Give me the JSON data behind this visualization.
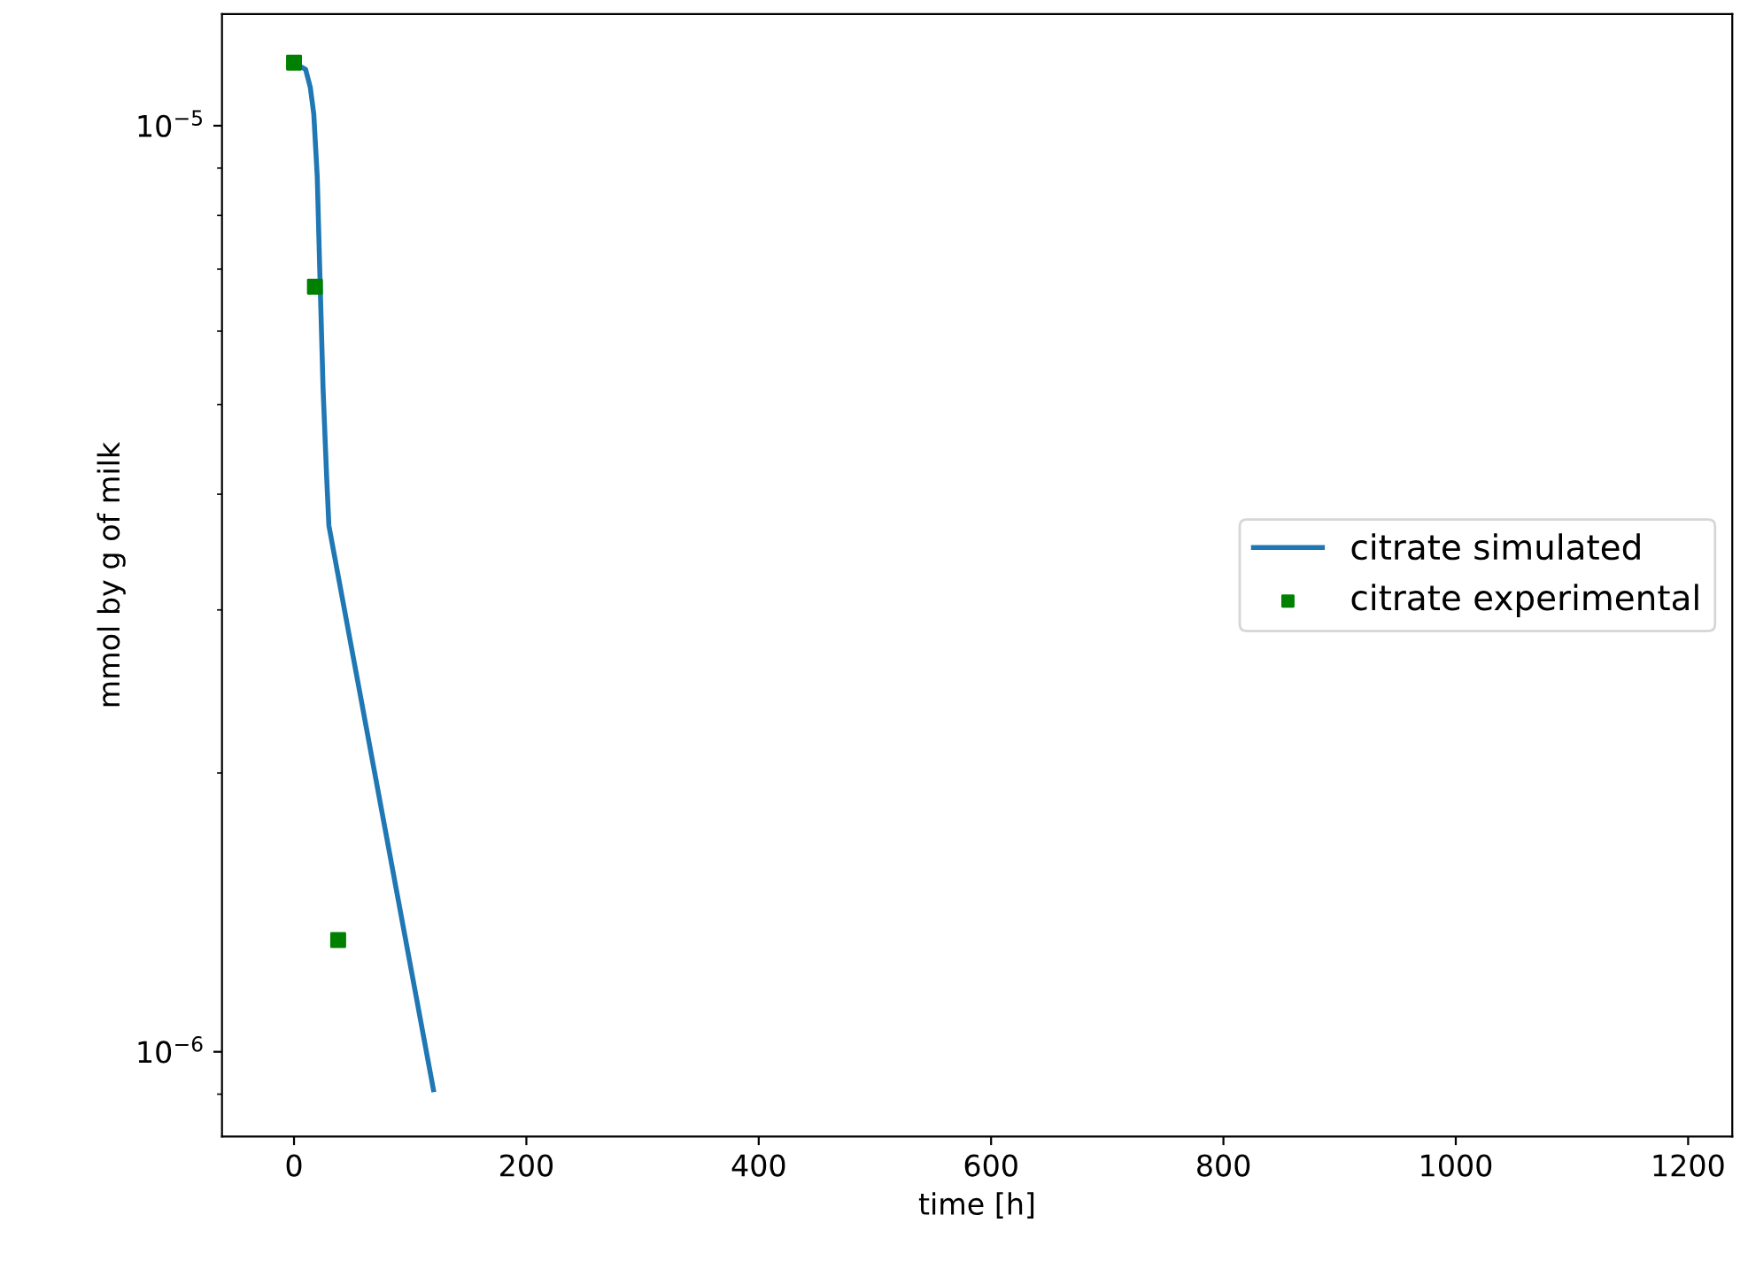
{
  "chart_data": {
    "type": "line",
    "xlabel": "time [h]",
    "ylabel": "mmol by g of milk",
    "log": "y",
    "xlim": [
      -62,
      1238
    ],
    "xticks": [
      0,
      200,
      400,
      600,
      800,
      1000,
      1200
    ],
    "ylim": [
      8.1e-07,
      1.32e-05
    ],
    "yticks": [
      {
        "value": 1e-05,
        "label": "10$^{−5}$"
      },
      {
        "value": 1e-06,
        "label": "10$^{−6}$"
      }
    ],
    "legend": "right",
    "grid": false,
    "series": [
      {
        "name": "citrate simulated",
        "color": "#1f77b4",
        "x": [
          0,
          5,
          10,
          14,
          17,
          20,
          22,
          25,
          28,
          30,
          120
        ],
        "values": [
          1.17e-05,
          1.16e-05,
          1.15e-05,
          1.1e-05,
          1.03e-05,
          8.8e-06,
          7.1e-06,
          5.2e-06,
          4.2e-06,
          3.7e-06,
          9.1e-07
        ]
      },
      {
        "name": "citrate experimental",
        "type": "scatter",
        "marker": "square",
        "color": "#008000",
        "x": [
          0,
          18,
          38
        ],
        "values": [
          1.17e-05,
          6.7e-06,
          1.32e-06
        ]
      }
    ]
  }
}
